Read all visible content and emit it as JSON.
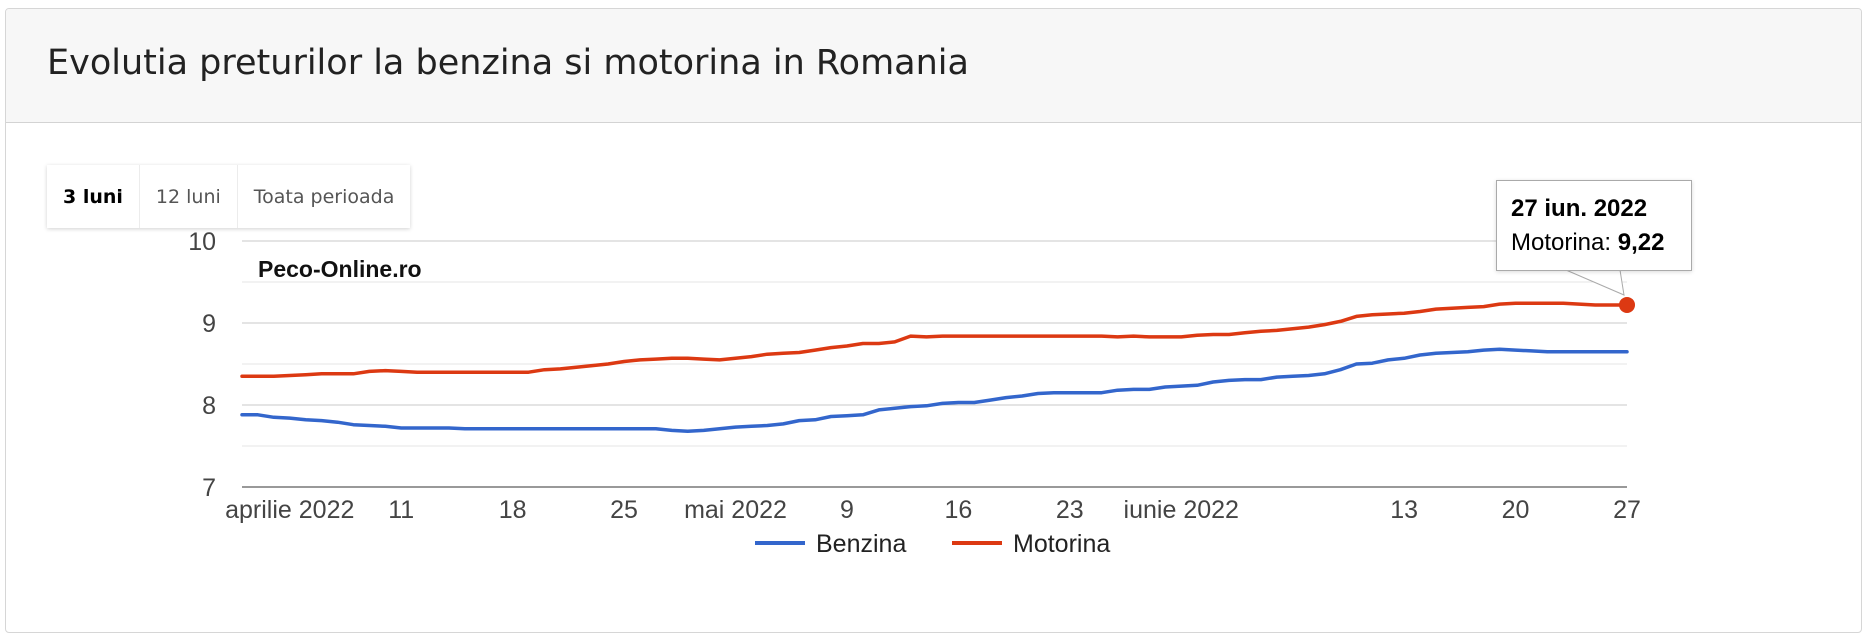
{
  "header": {
    "title": "Evolutia preturilor la benzina si motorina in Romania"
  },
  "range_buttons": [
    {
      "label": "3 luni",
      "active": true
    },
    {
      "label": "12 luni",
      "active": false
    },
    {
      "label": "Toata perioada",
      "active": false
    }
  ],
  "watermark": "Peco-Online.ro",
  "tooltip": {
    "date": "27 iun. 2022",
    "series": "Motorina",
    "separator": ": ",
    "value": "9,22"
  },
  "colors": {
    "Benzina": "#3366cc",
    "Motorina": "#dc3912"
  },
  "chart_data": {
    "type": "line",
    "x_start": "2022-04-01",
    "x_end": "2022-06-27",
    "xlabel": "",
    "ylabel": "",
    "ylim": [
      7,
      10
    ],
    "y_ticks": [
      "7",
      "8",
      "9",
      "10"
    ],
    "x_ticks": [
      {
        "date": "2022-04-04",
        "label": "aprilie 2022"
      },
      {
        "date": "2022-04-11",
        "label": "11"
      },
      {
        "date": "2022-04-18",
        "label": "18"
      },
      {
        "date": "2022-04-25",
        "label": "25"
      },
      {
        "date": "2022-05-02",
        "label": "mai 2022"
      },
      {
        "date": "2022-05-09",
        "label": "9"
      },
      {
        "date": "2022-05-16",
        "label": "16"
      },
      {
        "date": "2022-05-23",
        "label": "23"
      },
      {
        "date": "2022-05-30",
        "label": "iunie 2022"
      },
      {
        "date": "2022-06-13",
        "label": "13"
      },
      {
        "date": "2022-06-20",
        "label": "20"
      },
      {
        "date": "2022-06-27",
        "label": "27"
      }
    ],
    "legend_position": "bottom",
    "series": [
      {
        "name": "Benzina",
        "points": [
          [
            "2022-04-01",
            7.88
          ],
          [
            "2022-04-02",
            7.88
          ],
          [
            "2022-04-03",
            7.85
          ],
          [
            "2022-04-04",
            7.84
          ],
          [
            "2022-04-05",
            7.82
          ],
          [
            "2022-04-06",
            7.81
          ],
          [
            "2022-04-07",
            7.79
          ],
          [
            "2022-04-08",
            7.76
          ],
          [
            "2022-04-09",
            7.75
          ],
          [
            "2022-04-10",
            7.74
          ],
          [
            "2022-04-11",
            7.72
          ],
          [
            "2022-04-12",
            7.72
          ],
          [
            "2022-04-13",
            7.72
          ],
          [
            "2022-04-14",
            7.72
          ],
          [
            "2022-04-15",
            7.71
          ],
          [
            "2022-04-18",
            7.71
          ],
          [
            "2022-04-22",
            7.71
          ],
          [
            "2022-04-27",
            7.71
          ],
          [
            "2022-04-28",
            7.69
          ],
          [
            "2022-04-29",
            7.68
          ],
          [
            "2022-04-30",
            7.69
          ],
          [
            "2022-05-01",
            7.71
          ],
          [
            "2022-05-02",
            7.73
          ],
          [
            "2022-05-03",
            7.74
          ],
          [
            "2022-05-04",
            7.75
          ],
          [
            "2022-05-05",
            7.77
          ],
          [
            "2022-05-06",
            7.81
          ],
          [
            "2022-05-07",
            7.82
          ],
          [
            "2022-05-08",
            7.86
          ],
          [
            "2022-05-09",
            7.87
          ],
          [
            "2022-05-10",
            7.88
          ],
          [
            "2022-05-11",
            7.94
          ],
          [
            "2022-05-12",
            7.96
          ],
          [
            "2022-05-13",
            7.98
          ],
          [
            "2022-05-14",
            7.99
          ],
          [
            "2022-05-15",
            8.02
          ],
          [
            "2022-05-16",
            8.03
          ],
          [
            "2022-05-17",
            8.03
          ],
          [
            "2022-05-18",
            8.06
          ],
          [
            "2022-05-19",
            8.09
          ],
          [
            "2022-05-20",
            8.11
          ],
          [
            "2022-05-21",
            8.14
          ],
          [
            "2022-05-22",
            8.15
          ],
          [
            "2022-05-23",
            8.15
          ],
          [
            "2022-05-24",
            8.15
          ],
          [
            "2022-05-25",
            8.15
          ],
          [
            "2022-05-26",
            8.18
          ],
          [
            "2022-05-27",
            8.19
          ],
          [
            "2022-05-28",
            8.19
          ],
          [
            "2022-05-29",
            8.22
          ],
          [
            "2022-05-30",
            8.23
          ],
          [
            "2022-05-31",
            8.24
          ],
          [
            "2022-06-01",
            8.28
          ],
          [
            "2022-06-02",
            8.3
          ],
          [
            "2022-06-03",
            8.31
          ],
          [
            "2022-06-04",
            8.31
          ],
          [
            "2022-06-05",
            8.34
          ],
          [
            "2022-06-06",
            8.35
          ],
          [
            "2022-06-07",
            8.36
          ],
          [
            "2022-06-08",
            8.38
          ],
          [
            "2022-06-09",
            8.43
          ],
          [
            "2022-06-10",
            8.5
          ],
          [
            "2022-06-11",
            8.51
          ],
          [
            "2022-06-12",
            8.55
          ],
          [
            "2022-06-13",
            8.57
          ],
          [
            "2022-06-14",
            8.61
          ],
          [
            "2022-06-15",
            8.63
          ],
          [
            "2022-06-16",
            8.64
          ],
          [
            "2022-06-17",
            8.65
          ],
          [
            "2022-06-18",
            8.67
          ],
          [
            "2022-06-19",
            8.68
          ],
          [
            "2022-06-20",
            8.67
          ],
          [
            "2022-06-21",
            8.66
          ],
          [
            "2022-06-22",
            8.65
          ],
          [
            "2022-06-27",
            8.65
          ]
        ]
      },
      {
        "name": "Motorina",
        "points": [
          [
            "2022-04-01",
            8.35
          ],
          [
            "2022-04-02",
            8.35
          ],
          [
            "2022-04-03",
            8.35
          ],
          [
            "2022-04-04",
            8.36
          ],
          [
            "2022-04-05",
            8.37
          ],
          [
            "2022-04-06",
            8.38
          ],
          [
            "2022-04-07",
            8.38
          ],
          [
            "2022-04-08",
            8.38
          ],
          [
            "2022-04-09",
            8.41
          ],
          [
            "2022-04-10",
            8.42
          ],
          [
            "2022-04-11",
            8.41
          ],
          [
            "2022-04-12",
            8.4
          ],
          [
            "2022-04-15",
            8.4
          ],
          [
            "2022-04-19",
            8.4
          ],
          [
            "2022-04-20",
            8.43
          ],
          [
            "2022-04-21",
            8.44
          ],
          [
            "2022-04-22",
            8.46
          ],
          [
            "2022-04-23",
            8.48
          ],
          [
            "2022-04-24",
            8.5
          ],
          [
            "2022-04-25",
            8.53
          ],
          [
            "2022-04-26",
            8.55
          ],
          [
            "2022-04-27",
            8.56
          ],
          [
            "2022-04-28",
            8.57
          ],
          [
            "2022-04-29",
            8.57
          ],
          [
            "2022-04-30",
            8.56
          ],
          [
            "2022-05-01",
            8.55
          ],
          [
            "2022-05-02",
            8.57
          ],
          [
            "2022-05-03",
            8.59
          ],
          [
            "2022-05-04",
            8.62
          ],
          [
            "2022-05-05",
            8.63
          ],
          [
            "2022-05-06",
            8.64
          ],
          [
            "2022-05-07",
            8.67
          ],
          [
            "2022-05-08",
            8.7
          ],
          [
            "2022-05-09",
            8.72
          ],
          [
            "2022-05-10",
            8.75
          ],
          [
            "2022-05-11",
            8.75
          ],
          [
            "2022-05-12",
            8.77
          ],
          [
            "2022-05-13",
            8.84
          ],
          [
            "2022-05-14",
            8.83
          ],
          [
            "2022-05-15",
            8.84
          ],
          [
            "2022-05-20",
            8.84
          ],
          [
            "2022-05-25",
            8.84
          ],
          [
            "2022-05-26",
            8.83
          ],
          [
            "2022-05-27",
            8.84
          ],
          [
            "2022-05-28",
            8.83
          ],
          [
            "2022-05-30",
            8.83
          ],
          [
            "2022-05-31",
            8.85
          ],
          [
            "2022-06-01",
            8.86
          ],
          [
            "2022-06-02",
            8.86
          ],
          [
            "2022-06-03",
            8.88
          ],
          [
            "2022-06-04",
            8.9
          ],
          [
            "2022-06-05",
            8.91
          ],
          [
            "2022-06-06",
            8.93
          ],
          [
            "2022-06-07",
            8.95
          ],
          [
            "2022-06-08",
            8.98
          ],
          [
            "2022-06-09",
            9.02
          ],
          [
            "2022-06-10",
            9.08
          ],
          [
            "2022-06-11",
            9.1
          ],
          [
            "2022-06-12",
            9.11
          ],
          [
            "2022-06-13",
            9.12
          ],
          [
            "2022-06-14",
            9.14
          ],
          [
            "2022-06-15",
            9.17
          ],
          [
            "2022-06-16",
            9.18
          ],
          [
            "2022-06-17",
            9.19
          ],
          [
            "2022-06-18",
            9.2
          ],
          [
            "2022-06-19",
            9.23
          ],
          [
            "2022-06-20",
            9.24
          ],
          [
            "2022-06-21",
            9.24
          ],
          [
            "2022-06-22",
            9.24
          ],
          [
            "2022-06-23",
            9.24
          ],
          [
            "2022-06-24",
            9.23
          ],
          [
            "2022-06-25",
            9.22
          ],
          [
            "2022-06-27",
            9.22
          ]
        ]
      }
    ]
  }
}
